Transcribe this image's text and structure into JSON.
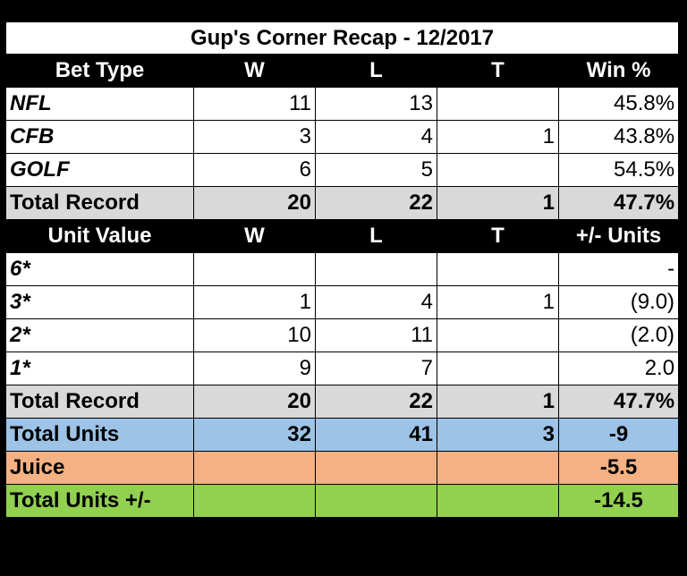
{
  "title": "Gup's Corner Recap - 12/2017",
  "section1": {
    "headers": [
      "Bet Type",
      "W",
      "L",
      "T",
      "Win %"
    ],
    "rows": [
      {
        "label": "NFL",
        "w": "11",
        "l": "13",
        "t": "",
        "pct": "45.8%"
      },
      {
        "label": "CFB",
        "w": "3",
        "l": "4",
        "t": "1",
        "pct": "43.8%"
      },
      {
        "label": "GOLF",
        "w": "6",
        "l": "5",
        "t": "",
        "pct": "54.5%"
      }
    ],
    "total": {
      "label": "Total Record",
      "w": "20",
      "l": "22",
      "t": "1",
      "pct": "47.7%"
    }
  },
  "section2": {
    "headers": [
      "Unit Value",
      "W",
      "L",
      "T",
      "+/- Units"
    ],
    "rows": [
      {
        "label": "6*",
        "w": "",
        "l": "",
        "t": "",
        "units": "-"
      },
      {
        "label": "3*",
        "w": "1",
        "l": "4",
        "t": "1",
        "units": "(9.0)"
      },
      {
        "label": "2*",
        "w": "10",
        "l": "11",
        "t": "",
        "units": "(2.0)"
      },
      {
        "label": "1*",
        "w": "9",
        "l": "7",
        "t": "",
        "units": "2.0"
      }
    ],
    "total": {
      "label": "Total Record",
      "w": "20",
      "l": "22",
      "t": "1",
      "pct": "47.7%"
    }
  },
  "total_units": {
    "label": "Total Units",
    "w": "32",
    "l": "41",
    "t": "3",
    "units": "-9"
  },
  "juice": {
    "label": "Juice",
    "value": "-5.5"
  },
  "total_units_pm": {
    "label": "Total Units +/-",
    "value": "-14.5"
  },
  "colors": {
    "background": "#000000",
    "total_row": "#d9d9d9",
    "units_row": "#9dc3e6",
    "juice_row": "#f4b183",
    "final_row": "#92d050"
  }
}
